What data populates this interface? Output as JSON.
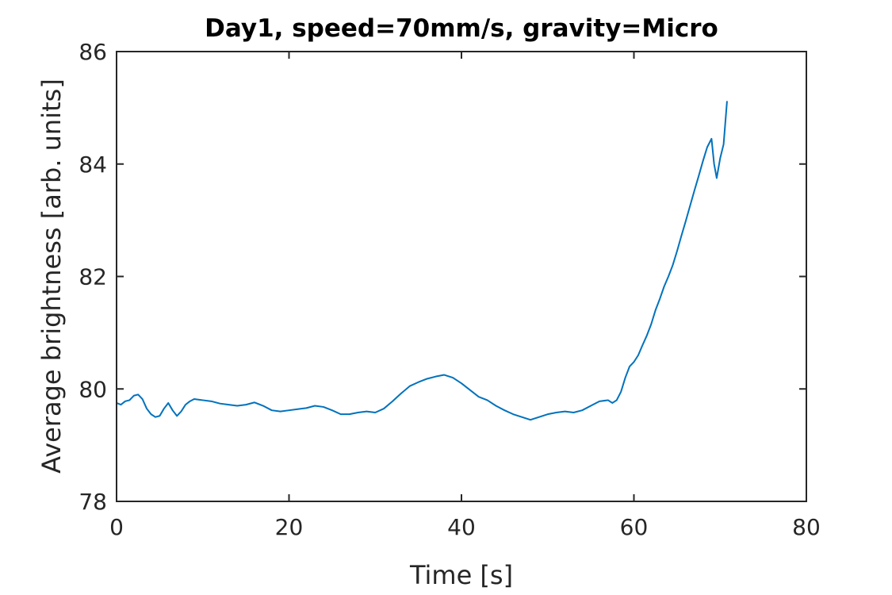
{
  "chart_data": {
    "type": "line",
    "title": "Day1, speed=70mm/s, gravity=Micro",
    "xlabel": "Time [s]",
    "ylabel": "Average brightness [arb. units]",
    "xlim": [
      0,
      80
    ],
    "ylim": [
      78,
      86
    ],
    "xticks": [
      0,
      20,
      40,
      60,
      80
    ],
    "yticks": [
      78,
      80,
      82,
      84,
      86
    ],
    "xtick_labels": [
      "0",
      "20",
      "40",
      "60",
      "80"
    ],
    "ytick_labels": [
      "78",
      "80",
      "82",
      "84",
      "86"
    ],
    "grid": false,
    "line_color": "#0072BD",
    "series": [
      {
        "x": [
          0,
          0.5,
          1,
          1.5,
          2,
          2.5,
          3,
          3.5,
          4,
          4.5,
          5,
          5.5,
          6,
          6.5,
          7,
          7.5,
          8,
          8.5,
          9,
          10,
          11,
          12,
          13,
          14,
          15,
          16,
          17,
          18,
          19,
          20,
          21,
          22,
          23,
          24,
          25,
          26,
          27,
          28,
          29,
          30,
          31,
          32,
          33,
          34,
          35,
          36,
          37,
          38,
          39,
          40,
          41,
          42,
          43,
          44,
          45,
          46,
          47,
          48,
          49,
          50,
          51,
          52,
          53,
          54,
          55,
          56,
          57,
          57.5,
          58,
          58.5,
          59,
          59.5,
          60,
          60.5,
          61,
          61.5,
          62,
          62.5,
          63,
          63.5,
          64,
          64.5,
          65,
          65.5,
          66,
          66.5,
          67,
          67.5,
          68,
          68.5,
          69,
          69.3,
          69.6,
          70,
          70.4,
          70.8
        ],
        "y": [
          79.75,
          79.72,
          79.78,
          79.8,
          79.88,
          79.9,
          79.82,
          79.65,
          79.55,
          79.5,
          79.52,
          79.65,
          79.75,
          79.62,
          79.52,
          79.6,
          79.72,
          79.78,
          79.82,
          79.8,
          79.78,
          79.74,
          79.72,
          79.7,
          79.72,
          79.76,
          79.7,
          79.62,
          79.6,
          79.62,
          79.64,
          79.66,
          79.7,
          79.68,
          79.62,
          79.55,
          79.55,
          79.58,
          79.6,
          79.58,
          79.65,
          79.78,
          79.92,
          80.05,
          80.12,
          80.18,
          80.22,
          80.25,
          80.2,
          80.1,
          79.98,
          79.86,
          79.8,
          79.7,
          79.62,
          79.55,
          79.5,
          79.45,
          79.5,
          79.55,
          79.58,
          79.6,
          79.58,
          79.62,
          79.7,
          79.78,
          79.8,
          79.75,
          79.8,
          79.95,
          80.2,
          80.4,
          80.48,
          80.6,
          80.78,
          80.95,
          81.15,
          81.4,
          81.6,
          81.82,
          82.0,
          82.2,
          82.45,
          82.72,
          82.98,
          83.25,
          83.52,
          83.78,
          84.05,
          84.3,
          84.45,
          84.0,
          83.75,
          84.1,
          84.35,
          85.12
        ]
      }
    ]
  }
}
